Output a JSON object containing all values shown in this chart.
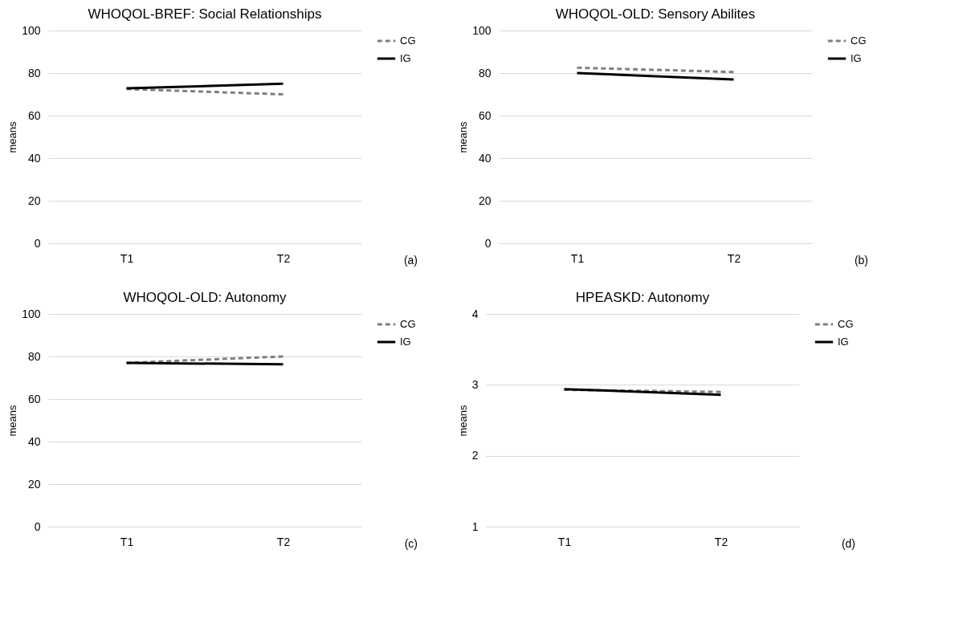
{
  "chart_data": [
    {
      "type": "line",
      "title": "WHOQOL-BREF: Social Relationships",
      "ylabel": "means",
      "categories": [
        "T1",
        "T2"
      ],
      "ylim": [
        0,
        100
      ],
      "yticks": [
        0,
        20,
        40,
        60,
        80,
        100
      ],
      "grid": "y",
      "legend": "right",
      "annotations": [
        "(a)"
      ],
      "series": [
        {
          "name": "CG",
          "color": "#7f7f7f",
          "line_style": "dashed",
          "values": [
            72.5,
            70
          ]
        },
        {
          "name": "IG",
          "color": "#000000",
          "line_style": "solid",
          "values": [
            72.8,
            75
          ]
        }
      ]
    },
    {
      "type": "line",
      "title": "WHOQOL-OLD: Sensory Abilites",
      "ylabel": "means",
      "categories": [
        "T1",
        "T2"
      ],
      "ylim": [
        0,
        100
      ],
      "yticks": [
        0,
        20,
        40,
        60,
        80,
        100
      ],
      "grid": "y",
      "legend": "right",
      "annotations": [
        "(b)"
      ],
      "series": [
        {
          "name": "CG",
          "color": "#7f7f7f",
          "line_style": "dashed",
          "values": [
            82.5,
            80.5
          ]
        },
        {
          "name": "IG",
          "color": "#000000",
          "line_style": "solid",
          "values": [
            80,
            77
          ]
        }
      ]
    },
    {
      "type": "line",
      "title": "WHOQOL-OLD: Autonomy",
      "ylabel": "means",
      "categories": [
        "T1",
        "T2"
      ],
      "ylim": [
        0,
        100
      ],
      "yticks": [
        0,
        20,
        40,
        60,
        80,
        100
      ],
      "grid": "y",
      "legend": "right",
      "annotations": [
        "(c)"
      ],
      "series": [
        {
          "name": "CG",
          "color": "#7f7f7f",
          "line_style": "dashed",
          "values": [
            77,
            80
          ]
        },
        {
          "name": "IG",
          "color": "#000000",
          "line_style": "solid",
          "values": [
            77,
            76.3
          ]
        }
      ]
    },
    {
      "type": "line",
      "title": "HPEASKD: Autonomy",
      "ylabel": "means",
      "categories": [
        "T1",
        "T2"
      ],
      "ylim": [
        1,
        4
      ],
      "yticks": [
        1,
        2,
        3,
        4
      ],
      "grid": "y",
      "legend": "right",
      "annotations": [
        "(d)"
      ],
      "series": [
        {
          "name": "CG",
          "color": "#7f7f7f",
          "line_style": "dashed",
          "values": [
            2.93,
            2.9
          ]
        },
        {
          "name": "IG",
          "color": "#000000",
          "line_style": "solid",
          "values": [
            2.94,
            2.86
          ]
        }
      ]
    }
  ]
}
